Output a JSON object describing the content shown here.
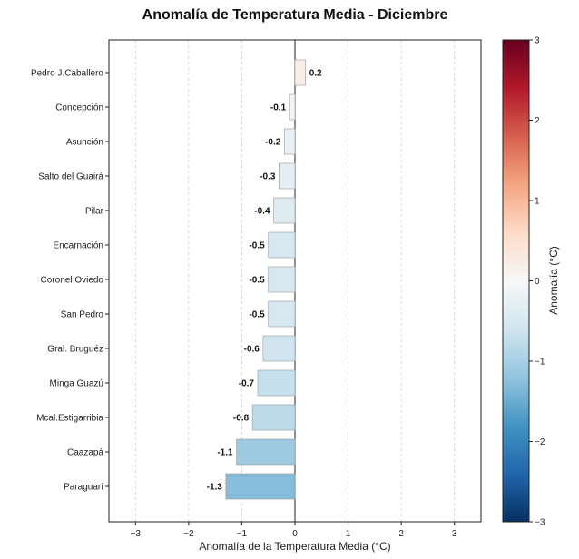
{
  "chart_data": {
    "type": "bar",
    "orientation": "horizontal",
    "title": "Anomalía de Temperatura Media - Diciembre",
    "xlabel": "Anomalía de la Temperatura Media (°C)",
    "ylabel": "",
    "xlim": [
      -3.5,
      3.5
    ],
    "x_ticks": [
      "−3",
      "−2",
      "−1",
      "0",
      "1",
      "2",
      "3"
    ],
    "x_tick_values": [
      -3,
      -2,
      -1,
      0,
      1,
      2,
      3
    ],
    "grid": "vertical dashed",
    "categories": [
      "Pedro J.Caballero",
      "Concepción",
      "Asunción",
      "Salto del Guairá",
      "Pilar",
      "Encarnación",
      "Coronel Oviedo",
      "San Pedro",
      "Gral. Bruguéz",
      "Minga Guazú",
      "Mcal.Estigarribia",
      "Caazapá",
      "Paraguarí"
    ],
    "values": [
      0.2,
      -0.1,
      -0.2,
      -0.3,
      -0.4,
      -0.5,
      -0.5,
      -0.5,
      -0.6,
      -0.7,
      -0.8,
      -1.1,
      -1.3
    ],
    "value_labels": [
      "0.2",
      "-0.1",
      "-0.2",
      "-0.3",
      "-0.4",
      "-0.5",
      "-0.5",
      "-0.5",
      "-0.6",
      "-0.7",
      "-0.8",
      "-1.1",
      "-1.3"
    ],
    "colorbar": {
      "label": "Anomalía (°C)",
      "range": [
        -3,
        3
      ],
      "ticks": [
        "3",
        "2",
        "1",
        "0",
        "−1",
        "−2",
        "−3"
      ],
      "tick_values": [
        3,
        2,
        1,
        0,
        -1,
        -2,
        -3
      ],
      "colormap": "RdBu_r",
      "colors": [
        "#053061",
        "#2166ac",
        "#4393c3",
        "#92c5de",
        "#d1e5f0",
        "#f7f7f7",
        "#fddbc7",
        "#f4a582",
        "#d6604d",
        "#b2182b",
        "#67001f"
      ]
    }
  }
}
